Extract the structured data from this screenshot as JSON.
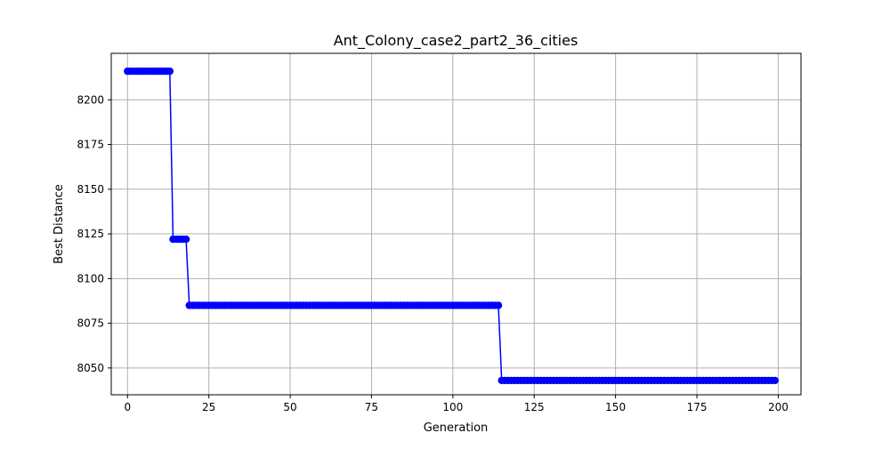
{
  "chart_data": {
    "type": "line",
    "title": "Ant_Colony_case2_part2_36_cities",
    "xlabel": "Generation",
    "ylabel": "Best Distance",
    "xlim": [
      -5,
      207
    ],
    "ylim": [
      8035,
      8226
    ],
    "xticks": [
      0,
      25,
      50,
      75,
      100,
      125,
      150,
      175,
      200
    ],
    "yticks": [
      8050,
      8075,
      8100,
      8125,
      8150,
      8175,
      8200
    ],
    "grid": true,
    "line_color": "#0000ff",
    "marker": "circle",
    "segments": [
      {
        "from": 0,
        "to": 13,
        "value": 8216
      },
      {
        "from": 14,
        "to": 18,
        "value": 8122
      },
      {
        "from": 19,
        "to": 114,
        "value": 8085
      },
      {
        "from": 115,
        "to": 199,
        "value": 8043
      }
    ]
  }
}
